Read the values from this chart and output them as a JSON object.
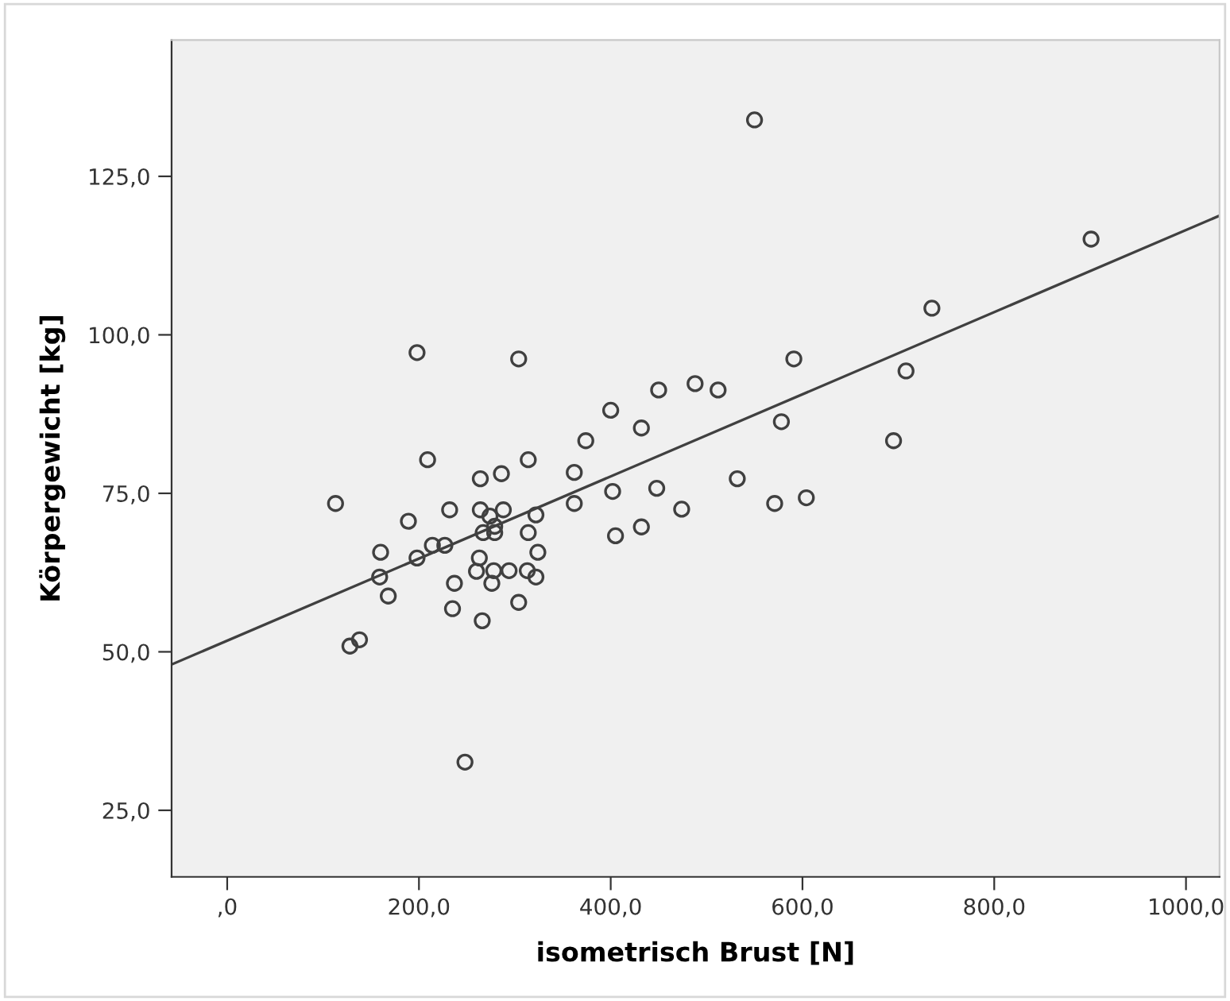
{
  "chart_data": {
    "type": "scatter",
    "xlabel": "isometrisch Brust [N]",
    "ylabel": "Körpergewicht [kg]",
    "xlim": [
      -58,
      1035
    ],
    "ylim": [
      14.5,
      146.5
    ],
    "xticks": [
      {
        "value": 0,
        "label": ",0"
      },
      {
        "value": 200,
        "label": "200,0"
      },
      {
        "value": 400,
        "label": "400,0"
      },
      {
        "value": 600,
        "label": "600,0"
      },
      {
        "value": 800,
        "label": "800,0"
      },
      {
        "value": 1000,
        "label": "1000,0"
      }
    ],
    "yticks": [
      {
        "value": 25,
        "label": "25,0"
      },
      {
        "value": 50,
        "label": "50,0"
      },
      {
        "value": 75,
        "label": "75,0"
      },
      {
        "value": 100,
        "label": "100,0"
      },
      {
        "value": 125,
        "label": "125,0"
      }
    ],
    "grid": false,
    "series": [
      {
        "marker": "circle",
        "color": "#404040",
        "x": [
          113,
          198,
          304,
          550,
          901,
          735,
          591,
          708,
          450,
          488,
          512,
          400,
          432,
          374,
          578,
          695,
          209,
          314,
          264,
          286,
          362,
          532,
          402,
          448,
          604,
          571,
          362,
          474,
          189,
          232,
          264,
          274,
          288,
          322,
          279,
          267,
          279,
          314,
          405,
          432,
          160,
          198,
          214,
          227,
          263,
          324,
          159,
          260,
          278,
          294,
          313,
          322,
          237,
          276,
          168,
          304,
          235,
          266,
          138,
          128,
          248
        ],
        "values": [
          73.4,
          97.2,
          96.2,
          133.9,
          115.1,
          104.2,
          96.2,
          94.3,
          91.3,
          92.3,
          91.3,
          88.1,
          85.3,
          83.3,
          86.3,
          83.3,
          80.3,
          80.3,
          77.3,
          78.1,
          78.3,
          77.3,
          75.3,
          75.8,
          74.3,
          73.4,
          73.4,
          72.5,
          70.6,
          72.4,
          72.4,
          71.4,
          72.4,
          71.6,
          69.8,
          68.8,
          68.8,
          68.8,
          68.3,
          69.7,
          65.7,
          64.8,
          66.8,
          66.8,
          64.8,
          65.7,
          61.8,
          62.7,
          62.8,
          62.8,
          62.8,
          61.8,
          60.8,
          60.8,
          58.8,
          57.8,
          56.8,
          54.9,
          51.9,
          50.9,
          32.6
        ]
      },
      {
        "type": "line",
        "color": "#404040",
        "x": [
          -58,
          1035
        ],
        "values": [
          48.0,
          118.8
        ],
        "line_style": "solid",
        "marker": "none"
      }
    ]
  }
}
